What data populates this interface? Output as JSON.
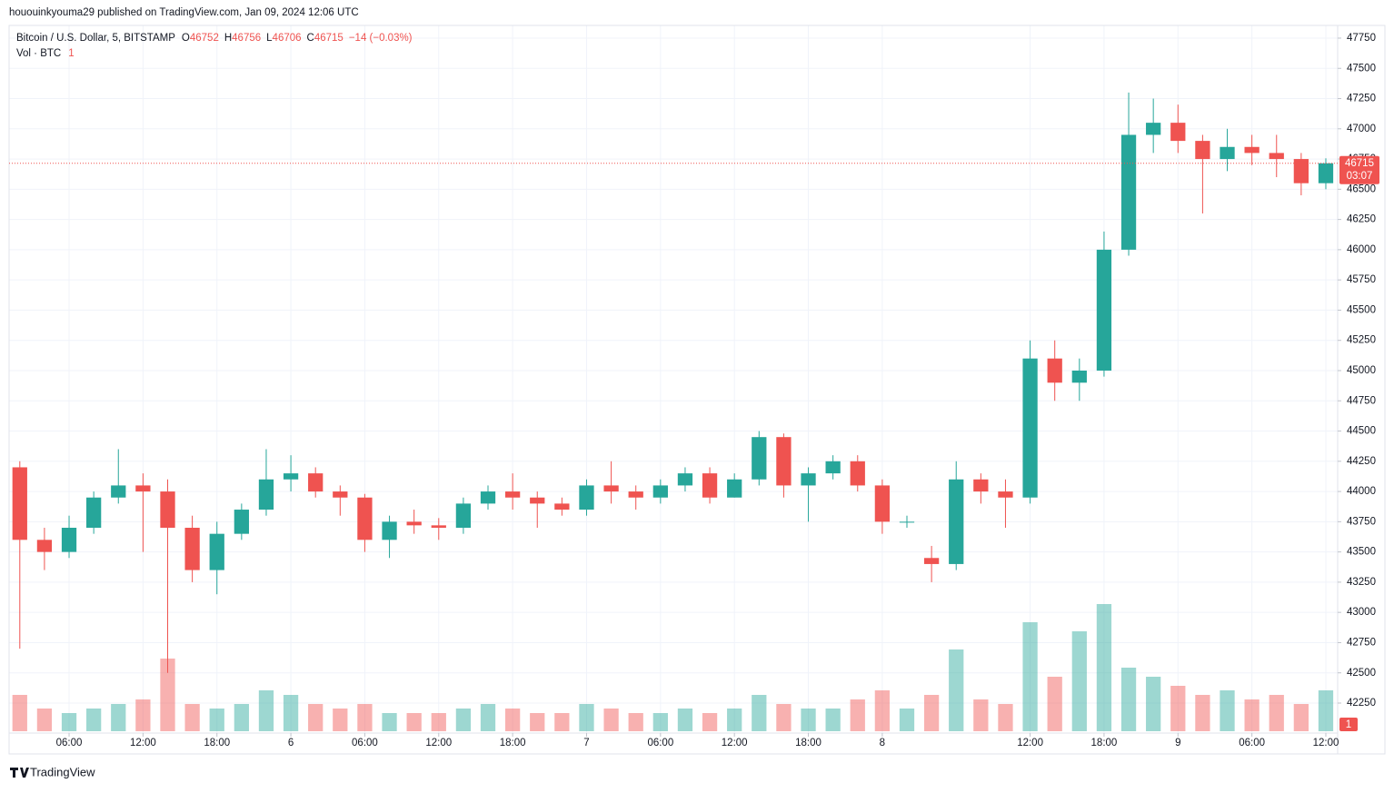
{
  "publisher": "hououinkyouma29 published on TradingView.com, Jan 09, 2024 12:06 UTC",
  "brand": "TradingView",
  "chart_data": {
    "type": "candlestick",
    "title": "Bitcoin / U.S. Dollar, 5, BITSTAMP",
    "legend": [
      {
        "label": "O",
        "value": 46752
      },
      {
        "label": "H",
        "value": 46756
      },
      {
        "label": "L",
        "value": 46706
      },
      {
        "label": "C",
        "value": 46715
      }
    ],
    "change": "−14 (−0.03%)",
    "volume_label": "Vol · BTC",
    "volume_last": 1,
    "last": {
      "price": 46715,
      "countdown": "03:07"
    },
    "up_color": "#26a69a",
    "down_color": "#ef5350",
    "x": [
      2,
      4,
      6,
      8,
      10,
      12,
      14,
      16,
      18,
      20,
      22,
      24,
      26,
      28,
      30,
      32,
      34,
      36,
      38,
      40,
      42,
      44,
      46,
      48,
      50,
      52,
      54,
      56,
      58,
      60,
      62,
      64,
      66,
      68,
      70,
      72,
      74,
      76,
      78,
      80,
      82,
      84,
      86,
      88,
      90,
      92,
      94,
      96,
      98,
      100,
      102,
      104,
      106,
      108
    ],
    "open": [
      44200,
      43600,
      43500,
      43700,
      43950,
      44050,
      44000,
      43700,
      43350,
      43650,
      43850,
      44100,
      44150,
      44000,
      43950,
      43600,
      43750,
      43720,
      43700,
      43900,
      44000,
      43950,
      43900,
      43850,
      44050,
      44000,
      43950,
      44050,
      44150,
      43950,
      44100,
      44450,
      44050,
      44150,
      44250,
      44050,
      43750,
      43450,
      43400,
      44100,
      44000,
      43950,
      45100,
      44900,
      45000,
      46000,
      46950,
      47050,
      46900,
      46750,
      46850,
      46800,
      46750,
      46550
    ],
    "high": [
      44250,
      43700,
      43800,
      44000,
      44350,
      44150,
      44100,
      43800,
      43750,
      43900,
      44350,
      44300,
      44200,
      44050,
      43980,
      43800,
      43850,
      43780,
      43950,
      44050,
      44150,
      44000,
      43950,
      44100,
      44250,
      44050,
      44100,
      44200,
      44200,
      44150,
      44500,
      44480,
      44200,
      44300,
      44300,
      44100,
      43800,
      43550,
      44250,
      44150,
      44100,
      45250,
      45250,
      45100,
      46150,
      47300,
      47250,
      47200,
      46950,
      47000,
      46950,
      46950,
      46800,
      46756
    ],
    "low": [
      42700,
      43350,
      43450,
      43650,
      43900,
      43500,
      42500,
      43250,
      43150,
      43600,
      43800,
      44000,
      43950,
      43800,
      43500,
      43450,
      43650,
      43600,
      43650,
      43850,
      43850,
      43700,
      43800,
      43800,
      43900,
      43850,
      43900,
      44000,
      43900,
      43950,
      44050,
      43950,
      43750,
      44100,
      44000,
      43650,
      43700,
      43250,
      43350,
      43900,
      43700,
      43900,
      44750,
      44750,
      44950,
      45950,
      46800,
      46800,
      46300,
      46650,
      46700,
      46600,
      46450,
      46500
    ],
    "close": [
      43600,
      43500,
      43700,
      43950,
      44050,
      44000,
      43700,
      43350,
      43650,
      43850,
      44100,
      44150,
      44000,
      43950,
      43600,
      43750,
      43720,
      43700,
      43900,
      44000,
      43950,
      43900,
      43850,
      44050,
      44000,
      43950,
      44050,
      44150,
      43950,
      44100,
      44450,
      44050,
      44150,
      44250,
      44050,
      43750,
      43750,
      43400,
      44100,
      44000,
      43950,
      45100,
      44900,
      45000,
      46000,
      46950,
      47050,
      46900,
      46750,
      46850,
      46800,
      46750,
      46550,
      46715
    ],
    "volume": [
      40,
      25,
      20,
      25,
      30,
      35,
      80,
      30,
      25,
      30,
      45,
      40,
      30,
      25,
      30,
      20,
      20,
      20,
      25,
      30,
      25,
      20,
      20,
      30,
      25,
      20,
      20,
      25,
      20,
      25,
      40,
      30,
      25,
      25,
      35,
      45,
      25,
      40,
      90,
      35,
      30,
      120,
      60,
      110,
      140,
      70,
      60,
      50,
      40,
      45,
      35,
      40,
      30,
      45
    ],
    "vlim": [
      0,
      160
    ],
    "xlim": [
      1.13,
      108.96
    ],
    "xticks": [
      {
        "value": 6,
        "label": "06:00"
      },
      {
        "value": 12,
        "label": "12:00"
      },
      {
        "value": 18,
        "label": "18:00"
      },
      {
        "value": 24,
        "label": "6"
      },
      {
        "value": 30,
        "label": "06:00"
      },
      {
        "value": 36,
        "label": "12:00"
      },
      {
        "value": 42,
        "label": "18:00"
      },
      {
        "value": 48,
        "label": "7"
      },
      {
        "value": 54,
        "label": "06:00"
      },
      {
        "value": 60,
        "label": "12:00"
      },
      {
        "value": 66,
        "label": "18:00"
      },
      {
        "value": 72,
        "label": "8"
      },
      {
        "value": 84,
        "label": "12:00"
      },
      {
        "value": 90,
        "label": "18:00"
      },
      {
        "value": 96,
        "label": "9"
      },
      {
        "value": 102,
        "label": "06:00"
      },
      {
        "value": 108,
        "label": "12:00"
      }
    ],
    "ylim": [
      42002,
      47855
    ],
    "yticks": [
      42250,
      42500,
      42750,
      43000,
      43250,
      43500,
      43750,
      44000,
      44250,
      44500,
      44750,
      45000,
      45250,
      45500,
      45750,
      46000,
      46250,
      46500,
      46750,
      47000,
      47250,
      47500,
      47750
    ],
    "grid": true
  }
}
